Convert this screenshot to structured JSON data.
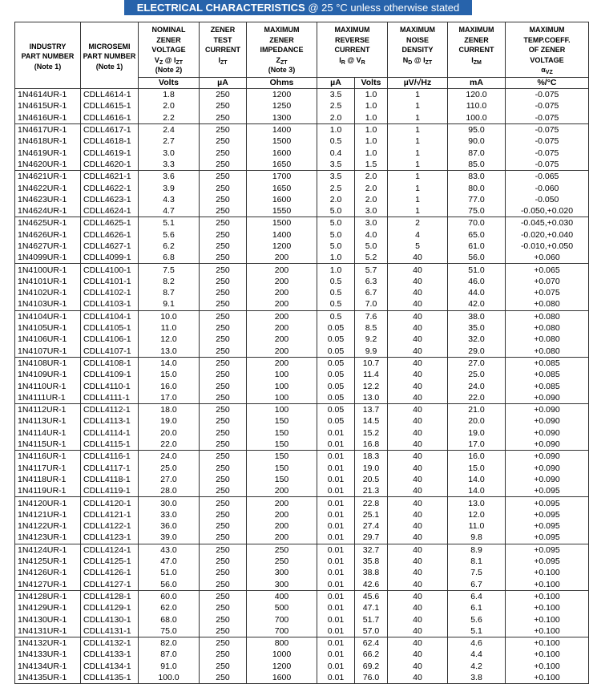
{
  "title": {
    "bold": "ELECTRICAL CHARACTERISTICS",
    "rest": "@ 25 °C unless otherwise stated"
  },
  "table": {
    "headers": [
      {
        "lines": [
          [
            "INDUSTRY"
          ],
          [
            "PART NUMBER"
          ],
          [
            "(Note 1)"
          ]
        ]
      },
      {
        "lines": [
          [
            "MICROSEMI"
          ],
          [
            "PART NUMBER"
          ],
          [
            "(Note 1)"
          ]
        ]
      },
      {
        "lines": [
          [
            "NOMINAL"
          ],
          [
            "ZENER"
          ],
          [
            "VOLTAGE"
          ],
          [
            {
              "text": "V"
            },
            {
              "text": "Z",
              "sub": true
            },
            {
              "text": " @ I"
            },
            {
              "text": "ZT",
              "sub": true
            }
          ],
          [
            "(Note 2)"
          ]
        ]
      },
      {
        "lines": [
          [
            "ZENER"
          ],
          [
            "TEST"
          ],
          [
            "CURRENT"
          ],
          [
            {
              "text": "I"
            },
            {
              "text": "ZT",
              "sub": true
            }
          ]
        ]
      },
      {
        "lines": [
          [
            "MAXIMUM"
          ],
          [
            "ZENER"
          ],
          [
            "IMPEDANCE"
          ],
          [
            {
              "text": "Z"
            },
            {
              "text": "ZT",
              "sub": true
            }
          ],
          [
            "(Note 3)"
          ]
        ]
      },
      {
        "lines": [
          [
            "MAXIMUM"
          ],
          [
            "REVERSE"
          ],
          [
            "CURRENT"
          ],
          [
            {
              "text": "I"
            },
            {
              "text": "R",
              "sub": true
            },
            {
              "text": " @ V"
            },
            {
              "text": "R",
              "sub": true
            }
          ]
        ]
      },
      {
        "lines": [
          [
            "MAXIMUM"
          ],
          [
            "NOISE"
          ],
          [
            "DENSITY"
          ],
          [
            {
              "text": "N"
            },
            {
              "text": "D",
              "sub": true
            },
            {
              "text": " @ I"
            },
            {
              "text": "ZT",
              "sub": true
            }
          ]
        ]
      },
      {
        "lines": [
          [
            "MAXIMUM"
          ],
          [
            "ZENER"
          ],
          [
            "CURRENT"
          ],
          [
            {
              "text": "I"
            },
            {
              "text": "ZM",
              "sub": true
            }
          ]
        ]
      },
      {
        "lines": [
          [
            "MAXIMUM"
          ],
          [
            "TEMP.COEFF."
          ],
          [
            "OF ZENER"
          ],
          [
            "VOLTAGE"
          ],
          [
            {
              "text": "α"
            },
            {
              "text": "VZ",
              "sub": true
            }
          ]
        ]
      }
    ],
    "units": [
      "Volts",
      "µA",
      "Ohms",
      "µA",
      "Volts",
      "µV/√Hz",
      "mA",
      "%/°C"
    ],
    "rows": [
      [
        "1N4614UR-1",
        "CDLL4614-1",
        "1.8",
        "250",
        "1200",
        "3.5",
        "1.0",
        "1",
        "120.0",
        "-0.075"
      ],
      [
        "1N4615UR-1",
        "CDLL4615-1",
        "2.0",
        "250",
        "1250",
        "2.5",
        "1.0",
        "1",
        "110.0",
        "-0.075"
      ],
      [
        "1N4616UR-1",
        "CDLL4616-1",
        "2.2",
        "250",
        "1300",
        "2.0",
        "1.0",
        "1",
        "100.0",
        "-0.075"
      ],
      [
        "1N4617UR-1",
        "CDLL4617-1",
        "2.4",
        "250",
        "1400",
        "1.0",
        "1.0",
        "1",
        "95.0",
        "-0.075"
      ],
      [
        "1N4618UR-1",
        "CDLL4618-1",
        "2.7",
        "250",
        "1500",
        "0.5",
        "1.0",
        "1",
        "90.0",
        "-0.075"
      ],
      [
        "1N4619UR-1",
        "CDLL4619-1",
        "3.0",
        "250",
        "1600",
        "0.4",
        "1.0",
        "1",
        "87.0",
        "-0.075"
      ],
      [
        "1N4620UR-1",
        "CDLL4620-1",
        "3.3",
        "250",
        "1650",
        "3.5",
        "1.5",
        "1",
        "85.0",
        "-0.075"
      ],
      [
        "1N4621UR-1",
        "CDLL4621-1",
        "3.6",
        "250",
        "1700",
        "3.5",
        "2.0",
        "1",
        "83.0",
        "-0.065"
      ],
      [
        "1N4622UR-1",
        "CDLL4622-1",
        "3.9",
        "250",
        "1650",
        "2.5",
        "2.0",
        "1",
        "80.0",
        "-0.060"
      ],
      [
        "1N4623UR-1",
        "CDLL4623-1",
        "4.3",
        "250",
        "1600",
        "2.0",
        "2.0",
        "1",
        "77.0",
        "-0.050"
      ],
      [
        "1N4624UR-1",
        "CDLL4624-1",
        "4.7",
        "250",
        "1550",
        "5.0",
        "3.0",
        "1",
        "75.0",
        "-0.050,+0.020"
      ],
      [
        "1N4625UR-1",
        "CDLL4625-1",
        "5.1",
        "250",
        "1500",
        "5.0",
        "3.0",
        "2",
        "70.0",
        "-0.045,+0.030"
      ],
      [
        "1N4626UR-1",
        "CDLL4626-1",
        "5.6",
        "250",
        "1400",
        "5.0",
        "4.0",
        "4",
        "65.0",
        "-0.020,+0.040"
      ],
      [
        "1N4627UR-1",
        "CDLL4627-1",
        "6.2",
        "250",
        "1200",
        "5.0",
        "5.0",
        "5",
        "61.0",
        "-0.010,+0.050"
      ],
      [
        "1N4099UR-1",
        "CDLL4099-1",
        "6.8",
        "250",
        "200",
        "1.0",
        "5.2",
        "40",
        "56.0",
        "+0.060"
      ],
      [
        "1N4100UR-1",
        "CDLL4100-1",
        "7.5",
        "250",
        "200",
        "1.0",
        "5.7",
        "40",
        "51.0",
        "+0.065"
      ],
      [
        "1N4101UR-1",
        "CDLL4101-1",
        "8.2",
        "250",
        "200",
        "0.5",
        "6.3",
        "40",
        "46.0",
        "+0.070"
      ],
      [
        "1N4102UR-1",
        "CDLL4102-1",
        "8.7",
        "250",
        "200",
        "0.5",
        "6.7",
        "40",
        "44.0",
        "+0.075"
      ],
      [
        "1N4103UR-1",
        "CDLL4103-1",
        "9.1",
        "250",
        "200",
        "0.5",
        "7.0",
        "40",
        "42.0",
        "+0.080"
      ],
      [
        "1N4104UR-1",
        "CDLL4104-1",
        "10.0",
        "250",
        "200",
        "0.5",
        "7.6",
        "40",
        "38.0",
        "+0.080"
      ],
      [
        "1N4105UR-1",
        "CDLL4105-1",
        "11.0",
        "250",
        "200",
        "0.05",
        "8.5",
        "40",
        "35.0",
        "+0.080"
      ],
      [
        "1N4106UR-1",
        "CDLL4106-1",
        "12.0",
        "250",
        "200",
        "0.05",
        "9.2",
        "40",
        "32.0",
        "+0.080"
      ],
      [
        "1N4107UR-1",
        "CDLL4107-1",
        "13.0",
        "250",
        "200",
        "0.05",
        "9.9",
        "40",
        "29.0",
        "+0.080"
      ],
      [
        "1N4108UR-1",
        "CDLL4108-1",
        "14.0",
        "250",
        "200",
        "0.05",
        "10.7",
        "40",
        "27.0",
        "+0.085"
      ],
      [
        "1N4109UR-1",
        "CDLL4109-1",
        "15.0",
        "250",
        "100",
        "0.05",
        "11.4",
        "40",
        "25.0",
        "+0.085"
      ],
      [
        "1N4110UR-1",
        "CDLL4110-1",
        "16.0",
        "250",
        "100",
        "0.05",
        "12.2",
        "40",
        "24.0",
        "+0.085"
      ],
      [
        "1N4111UR-1",
        "CDLL4111-1",
        "17.0",
        "250",
        "100",
        "0.05",
        "13.0",
        "40",
        "22.0",
        "+0.090"
      ],
      [
        "1N4112UR-1",
        "CDLL4112-1",
        "18.0",
        "250",
        "100",
        "0.05",
        "13.7",
        "40",
        "21.0",
        "+0.090"
      ],
      [
        "1N4113UR-1",
        "CDLL4113-1",
        "19.0",
        "250",
        "150",
        "0.05",
        "14.5",
        "40",
        "20.0",
        "+0.090"
      ],
      [
        "1N4114UR-1",
        "CDLL4114-1",
        "20.0",
        "250",
        "150",
        "0.01",
        "15.2",
        "40",
        "19.0",
        "+0.090"
      ],
      [
        "1N4115UR-1",
        "CDLL4115-1",
        "22.0",
        "250",
        "150",
        "0.01",
        "16.8",
        "40",
        "17.0",
        "+0.090"
      ],
      [
        "1N4116UR-1",
        "CDLL4116-1",
        "24.0",
        "250",
        "150",
        "0.01",
        "18.3",
        "40",
        "16.0",
        "+0.090"
      ],
      [
        "1N4117UR-1",
        "CDLL4117-1",
        "25.0",
        "250",
        "150",
        "0.01",
        "19.0",
        "40",
        "15.0",
        "+0.090"
      ],
      [
        "1N4118UR-1",
        "CDLL4118-1",
        "27.0",
        "250",
        "150",
        "0.01",
        "20.5",
        "40",
        "14.0",
        "+0.090"
      ],
      [
        "1N4119UR-1",
        "CDLL4119-1",
        "28.0",
        "250",
        "200",
        "0.01",
        "21.3",
        "40",
        "14.0",
        "+0.095"
      ],
      [
        "1N4120UR-1",
        "CDLL4120-1",
        "30.0",
        "250",
        "200",
        "0.01",
        "22.8",
        "40",
        "13.0",
        "+0.095"
      ],
      [
        "1N4121UR-1",
        "CDLL4121-1",
        "33.0",
        "250",
        "200",
        "0.01",
        "25.1",
        "40",
        "12.0",
        "+0.095"
      ],
      [
        "1N4122UR-1",
        "CDLL4122-1",
        "36.0",
        "250",
        "200",
        "0.01",
        "27.4",
        "40",
        "11.0",
        "+0.095"
      ],
      [
        "1N4123UR-1",
        "CDLL4123-1",
        "39.0",
        "250",
        "200",
        "0.01",
        "29.7",
        "40",
        "9.8",
        "+0.095"
      ],
      [
        "1N4124UR-1",
        "CDLL4124-1",
        "43.0",
        "250",
        "250",
        "0.01",
        "32.7",
        "40",
        "8.9",
        "+0.095"
      ],
      [
        "1N4125UR-1",
        "CDLL4125-1",
        "47.0",
        "250",
        "250",
        "0.01",
        "35.8",
        "40",
        "8.1",
        "+0.095"
      ],
      [
        "1N4126UR-1",
        "CDLL4126-1",
        "51.0",
        "250",
        "300",
        "0.01",
        "38.8",
        "40",
        "7.5",
        "+0.100"
      ],
      [
        "1N4127UR-1",
        "CDLL4127-1",
        "56.0",
        "250",
        "300",
        "0.01",
        "42.6",
        "40",
        "6.7",
        "+0.100"
      ],
      [
        "1N4128UR-1",
        "CDLL4128-1",
        "60.0",
        "250",
        "400",
        "0.01",
        "45.6",
        "40",
        "6.4",
        "+0.100"
      ],
      [
        "1N4129UR-1",
        "CDLL4129-1",
        "62.0",
        "250",
        "500",
        "0.01",
        "47.1",
        "40",
        "6.1",
        "+0.100"
      ],
      [
        "1N4130UR-1",
        "CDLL4130-1",
        "68.0",
        "250",
        "700",
        "0.01",
        "51.7",
        "40",
        "5.6",
        "+0.100"
      ],
      [
        "1N4131UR-1",
        "CDLL4131-1",
        "75.0",
        "250",
        "700",
        "0.01",
        "57.0",
        "40",
        "5.1",
        "+0.100"
      ],
      [
        "1N4132UR-1",
        "CDLL4132-1",
        "82.0",
        "250",
        "800",
        "0.01",
        "62.4",
        "40",
        "4.6",
        "+0.100"
      ],
      [
        "1N4133UR-1",
        "CDLL4133-1",
        "87.0",
        "250",
        "1000",
        "0.01",
        "66.2",
        "40",
        "4.4",
        "+0.100"
      ],
      [
        "1N4134UR-1",
        "CDLL4134-1",
        "91.0",
        "250",
        "1200",
        "0.01",
        "69.2",
        "40",
        "4.2",
        "+0.100"
      ],
      [
        "1N4135UR-1",
        "CDLL4135-1",
        "100.0",
        "250",
        "1600",
        "0.01",
        "76.0",
        "40",
        "3.8",
        "+0.100"
      ]
    ]
  }
}
